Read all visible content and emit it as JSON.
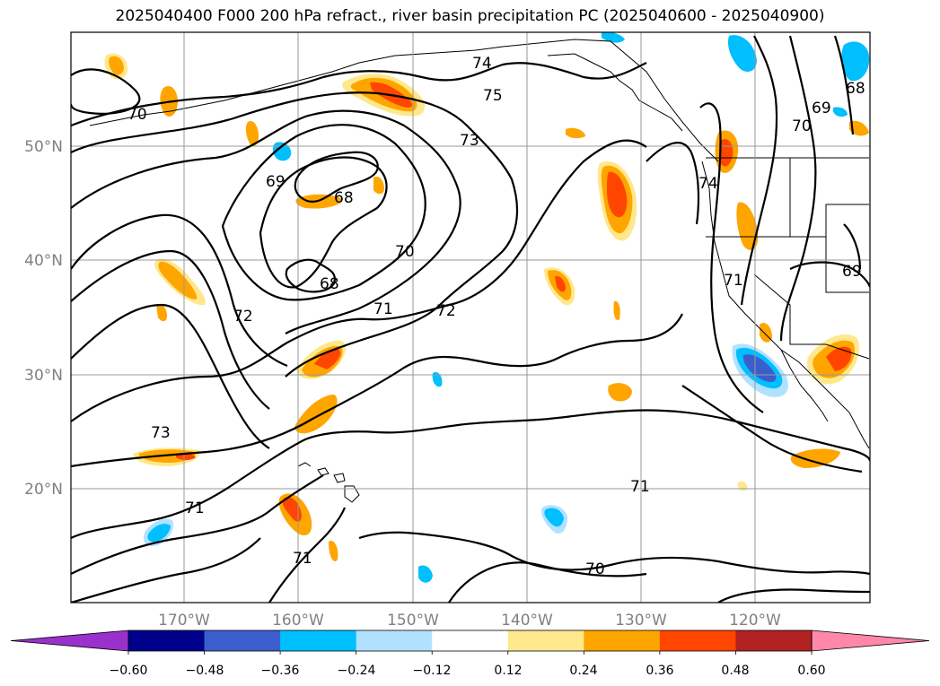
{
  "title": "2025040400 F000 200 hPa refract., river basin precipitation PC (2025040600 - 2025040900)",
  "map": {
    "lon_range": [
      -180,
      -110
    ],
    "lat_range": [
      10,
      60
    ],
    "lon_ticks": [
      {
        "value": -170,
        "label": "170°W"
      },
      {
        "value": -160,
        "label": "160°W"
      },
      {
        "value": -150,
        "label": "150°W"
      },
      {
        "value": -140,
        "label": "140°W"
      },
      {
        "value": -130,
        "label": "130°W"
      },
      {
        "value": -120,
        "label": "120°W"
      }
    ],
    "lat_ticks": [
      {
        "value": 50,
        "label": "50°N"
      },
      {
        "value": 40,
        "label": "40°N"
      },
      {
        "value": 30,
        "label": "30°N"
      },
      {
        "value": 20,
        "label": "20°N"
      }
    ],
    "grid": true,
    "contour_labels": [
      "74",
      "75",
      "73",
      "70",
      "69",
      "68",
      "70",
      "68",
      "71",
      "72",
      "72",
      "73",
      "71",
      "71",
      "70",
      "71",
      "74",
      "71",
      "70",
      "69",
      "68",
      "69"
    ]
  },
  "colorbar": {
    "ticks": [
      "−0.60",
      "−0.48",
      "−0.36",
      "−0.24",
      "−0.12",
      "0.12",
      "0.24",
      "0.36",
      "0.48",
      "0.60"
    ],
    "colors": [
      "#9932cc",
      "#00008b",
      "#3a5fcd",
      "#00bfff",
      "#b0e2ff",
      "#ffffff",
      "#ffe88c",
      "#ffa500",
      "#ff4500",
      "#b22222",
      "#ff88aa"
    ],
    "extend": "both"
  }
}
